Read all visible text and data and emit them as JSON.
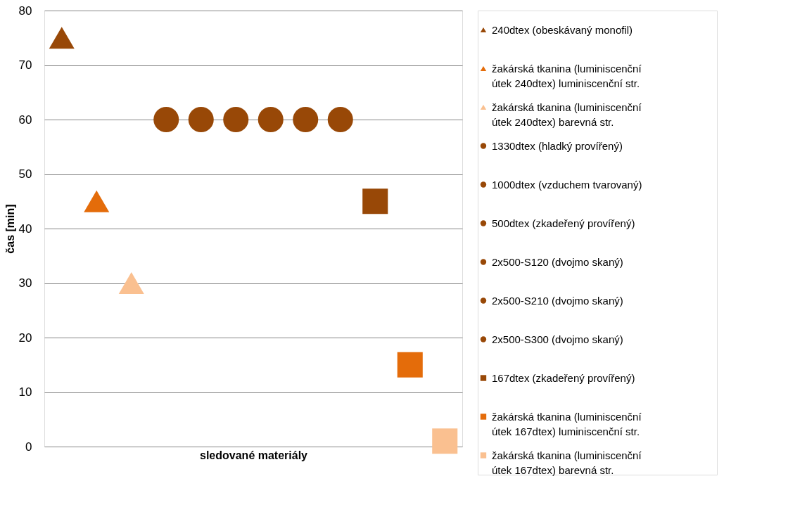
{
  "chart_data": {
    "type": "scatter",
    "xlabel": "sledované materiály",
    "ylabel": "čas [min]",
    "categories": [
      null,
      null,
      null,
      null,
      null,
      null,
      null,
      null,
      null,
      null,
      null,
      null
    ],
    "ylim": [
      0,
      80
    ],
    "yticks": [
      0,
      10,
      20,
      30,
      40,
      50,
      60,
      70,
      80
    ],
    "grid": "y",
    "legend": "right",
    "tick_labels": "y",
    "series": [
      {
        "name": "240dtex (obeskávaný monofil)",
        "color": "#984807",
        "marker": "triangle",
        "values": [
          75,
          null,
          null,
          null,
          null,
          null,
          null,
          null,
          null,
          null,
          null,
          null
        ]
      },
      {
        "name": "žakárská tkanina (luminiscenční útek 240dtex) luminiscenční str.",
        "color": "#e46c0a",
        "marker": "triangle",
        "values": [
          null,
          45,
          null,
          null,
          null,
          null,
          null,
          null,
          null,
          null,
          null,
          null
        ]
      },
      {
        "name": "žakárská tkanina (luminiscenční útek 240dtex) barevná str.",
        "color": "#fac090",
        "marker": "triangle",
        "values": [
          null,
          null,
          30,
          null,
          null,
          null,
          null,
          null,
          null,
          null,
          null,
          null
        ]
      },
      {
        "name": "1330dtex  (hladký provířený)",
        "color": "#984807",
        "marker": "circle",
        "values": [
          null,
          null,
          null,
          60,
          null,
          null,
          null,
          null,
          null,
          null,
          null,
          null
        ]
      },
      {
        "name": "1000dtex   (vzduchem tvarovaný)",
        "color": "#984807",
        "marker": "circle",
        "values": [
          null,
          null,
          null,
          null,
          60,
          null,
          null,
          null,
          null,
          null,
          null,
          null
        ]
      },
      {
        "name": "500dtex (zkadeřený provířený)",
        "color": "#984807",
        "marker": "circle",
        "values": [
          null,
          null,
          null,
          null,
          null,
          60,
          null,
          null,
          null,
          null,
          null,
          null
        ]
      },
      {
        "name": " 2x500-S120 (dvojmo skaný)",
        "color": "#984807",
        "marker": "circle",
        "values": [
          null,
          null,
          null,
          null,
          null,
          null,
          60,
          null,
          null,
          null,
          null,
          null
        ]
      },
      {
        "name": "2x500-S210 (dvojmo skaný)",
        "color": "#984807",
        "marker": "circle",
        "values": [
          null,
          null,
          null,
          null,
          null,
          null,
          null,
          60,
          null,
          null,
          null,
          null
        ]
      },
      {
        "name": "2x500-S300 (dvojmo skaný)",
        "color": "#984807",
        "marker": "circle",
        "values": [
          null,
          null,
          null,
          null,
          null,
          null,
          null,
          null,
          60,
          null,
          null,
          null
        ]
      },
      {
        "name": "167dtex (zkadeřený provířený)",
        "color": "#984807",
        "marker": "square",
        "values": [
          null,
          null,
          null,
          null,
          null,
          null,
          null,
          null,
          null,
          45,
          null,
          null
        ]
      },
      {
        "name": "žakárská tkanina (luminiscenční útek 167dtex) luminiscenční str.",
        "color": "#e46c0a",
        "marker": "square",
        "values": [
          null,
          null,
          null,
          null,
          null,
          null,
          null,
          null,
          null,
          null,
          15,
          null
        ]
      },
      {
        "name": "žakárská tkanina (luminiscenční útek 167dtex) barevná str.",
        "color": "#fac090",
        "marker": "square",
        "values": [
          null,
          null,
          null,
          null,
          null,
          null,
          null,
          null,
          null,
          null,
          null,
          1
        ]
      }
    ]
  }
}
